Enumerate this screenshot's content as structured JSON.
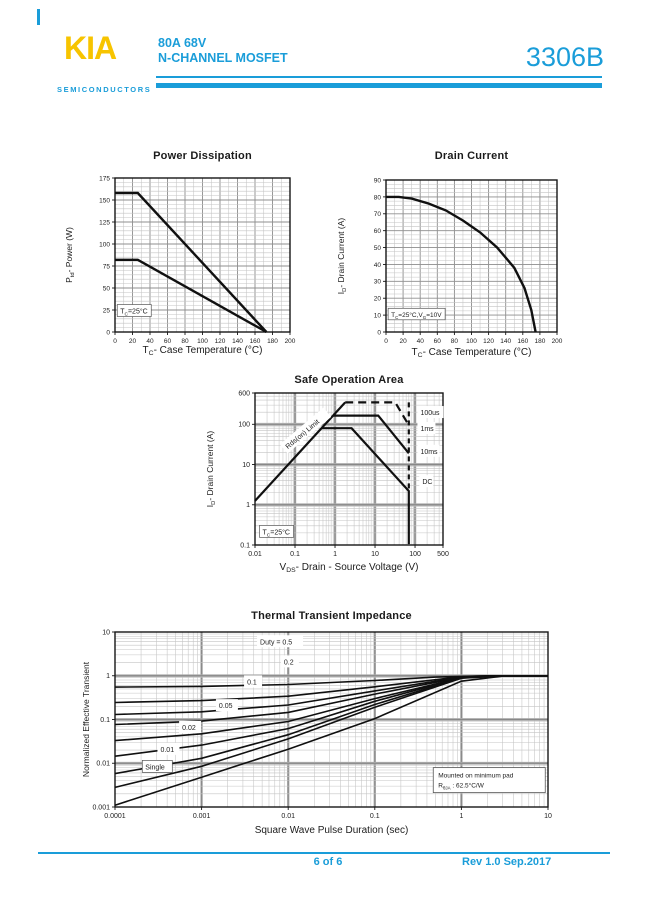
{
  "page": {
    "brand": {
      "logo": "KIA",
      "tagline": "SEMICONDUCTORS",
      "accent_color": "#1A9DD9",
      "logo_color": "#F7C400"
    },
    "header": {
      "spec_line1": "80A 68V",
      "spec_line2": "N-CHANNEL MOSFET",
      "part_number": "3306B"
    },
    "footer": {
      "page_indicator": "6 of 6",
      "revision": "Rev 1.0 Sep.2017"
    }
  },
  "chart_data": [
    {
      "key": "power_dissipation",
      "type": "line",
      "title": "Power Dissipation",
      "xlabel": "T_{C}- Case Temperature (°C)",
      "ylabel": "P_{td}- Power (W)",
      "xscale": "linear",
      "yscale": "linear",
      "xlim": [
        0,
        200
      ],
      "ylim": [
        0,
        175
      ],
      "x_ticks": [
        0,
        20,
        40,
        60,
        80,
        100,
        120,
        140,
        160,
        180,
        200
      ],
      "y_ticks": [
        0,
        25,
        50,
        75,
        100,
        125,
        150,
        175
      ],
      "x_minor": 10,
      "y_minor": 5,
      "grid": true,
      "series": [
        {
          "name": "power-limit-upper",
          "points": [
            [
              0,
              158
            ],
            [
              26,
              158
            ],
            [
              173,
              0
            ]
          ]
        },
        {
          "name": "power-limit-lower",
          "points": [
            [
              0,
              82
            ],
            [
              26,
              82
            ],
            [
              173,
              0
            ]
          ]
        }
      ],
      "labels": [
        {
          "text": "T_{C}=25°C",
          "fx": 0.03,
          "fy": 0.88,
          "size": 7,
          "box": true
        }
      ]
    },
    {
      "key": "drain_current",
      "type": "line",
      "title": "Drain Current",
      "xlabel": "T_{C}- Case Temperature (°C)",
      "ylabel": "I_{D}- Drain Current (A)",
      "xscale": "linear",
      "yscale": "linear",
      "xlim": [
        0,
        200
      ],
      "ylim": [
        0,
        90
      ],
      "x_ticks": [
        0,
        20,
        40,
        60,
        80,
        100,
        120,
        140,
        160,
        180,
        200
      ],
      "y_ticks": [
        0,
        10,
        20,
        30,
        40,
        50,
        60,
        70,
        80,
        90
      ],
      "x_minor": 10,
      "y_minor": 2.5,
      "grid": true,
      "series": [
        {
          "name": "id-derating",
          "points": [
            [
              0,
              80
            ],
            [
              15,
              80
            ],
            [
              30,
              79
            ],
            [
              50,
              76
            ],
            [
              70,
              72
            ],
            [
              90,
              66
            ],
            [
              110,
              59
            ],
            [
              130,
              50
            ],
            [
              150,
              38
            ],
            [
              162,
              26
            ],
            [
              170,
              13
            ],
            [
              175,
              0
            ]
          ]
        }
      ],
      "labels": [
        {
          "text": "T_{C}=25°C,V_{G}=10V",
          "fx": 0.03,
          "fy": 0.9,
          "size": 6.5,
          "box": true
        }
      ]
    },
    {
      "key": "soa",
      "type": "line",
      "title": "Safe Operation Area",
      "xlabel": "V_{DS}- Drain - Source Voltage (V)",
      "ylabel": "I_{D}- Drain Current (A)",
      "xscale": "log",
      "yscale": "log",
      "xlim": [
        0.01,
        500
      ],
      "ylim": [
        0.1,
        600
      ],
      "x_ticks": [
        "0.01",
        "0.1",
        "1",
        "10",
        "100",
        "500"
      ],
      "y_ticks": [
        "600",
        "100",
        "10",
        "1",
        "0.1"
      ],
      "grid": true,
      "series": [
        {
          "name": "rdson-limit",
          "points": [
            [
              0.01,
              1.25
            ],
            [
              1.8,
              350
            ]
          ]
        },
        {
          "name": "100us",
          "dash": "8,5",
          "points": [
            [
              1.8,
              350
            ],
            [
              32,
              350
            ],
            [
              70,
              95
            ]
          ]
        },
        {
          "name": "1ms-10ms",
          "points": [
            [
              0.9,
              165
            ],
            [
              12,
              165
            ],
            [
              70,
              19
            ]
          ]
        },
        {
          "name": "dc",
          "points": [
            [
              0.46,
              80
            ],
            [
              2.6,
              80
            ],
            [
              70,
              2.2
            ],
            [
              70,
              0.105
            ]
          ]
        },
        {
          "name": "voltage-limit",
          "dash": "5,4",
          "points": [
            [
              70,
              350
            ],
            [
              70,
              2.2
            ]
          ]
        }
      ],
      "labels": [
        {
          "text": "Rds(on) Limit",
          "fx": 0.175,
          "fy": 0.37,
          "rot": -40,
          "size": 7,
          "bg": true
        },
        {
          "text": "100us",
          "fx": 0.88,
          "fy": 0.145,
          "size": 7,
          "bg": true
        },
        {
          "text": "1ms",
          "fx": 0.88,
          "fy": 0.25,
          "size": 7,
          "bg": true
        },
        {
          "text": "10ms",
          "fx": 0.88,
          "fy": 0.4,
          "size": 7,
          "bg": true
        },
        {
          "text": "DC",
          "fx": 0.89,
          "fy": 0.6,
          "size": 7,
          "bg": true
        },
        {
          "text": "T_{C}=25°C",
          "fx": 0.04,
          "fy": 0.93,
          "size": 7,
          "box": true
        }
      ]
    },
    {
      "key": "thermal",
      "type": "line",
      "title": "Thermal Transient Impedance",
      "xlabel": "Square Wave Pulse Duration (sec)",
      "ylabel": "Normalized Effective Transient",
      "xscale": "log",
      "yscale": "log",
      "xlim": [
        0.0001,
        10
      ],
      "ylim": [
        0.001,
        10
      ],
      "x_ticks": [
        "0.0001",
        "0.001",
        "0.01",
        "0.1",
        "1",
        "10"
      ],
      "y_ticks": [
        "10",
        "1",
        "0.1",
        "0.01",
        "0.001"
      ],
      "grid": true,
      "series": [
        {
          "name": "duty-0.5",
          "points": [
            [
              0.0001,
              0.55
            ],
            [
              0.001,
              0.57
            ],
            [
              0.01,
              0.63
            ],
            [
              0.1,
              0.78
            ],
            [
              0.5,
              0.93
            ],
            [
              2,
              1.0
            ],
            [
              10,
              1.0
            ]
          ]
        },
        {
          "name": "duty-0.2",
          "points": [
            [
              0.0001,
              0.245
            ],
            [
              0.001,
              0.27
            ],
            [
              0.01,
              0.34
            ],
            [
              0.1,
              0.56
            ],
            [
              1,
              0.95
            ],
            [
              2,
              1.0
            ],
            [
              10,
              1.0
            ]
          ]
        },
        {
          "name": "duty-0.1",
          "points": [
            [
              0.0001,
              0.13
            ],
            [
              0.001,
              0.15
            ],
            [
              0.01,
              0.215
            ],
            [
              0.1,
              0.45
            ],
            [
              1,
              0.93
            ],
            [
              2.5,
              1.0
            ],
            [
              10,
              1.0
            ]
          ]
        },
        {
          "name": "duty-0.05",
          "points": [
            [
              0.0001,
              0.077
            ],
            [
              0.001,
              0.092
            ],
            [
              0.01,
              0.145
            ],
            [
              0.1,
              0.38
            ],
            [
              1,
              0.92
            ],
            [
              3,
              1.0
            ],
            [
              10,
              1.0
            ]
          ]
        },
        {
          "name": "duty-0.02",
          "points": [
            [
              0.0001,
              0.033
            ],
            [
              0.001,
              0.047
            ],
            [
              0.01,
              0.09
            ],
            [
              0.1,
              0.3
            ],
            [
              1,
              0.9
            ],
            [
              3,
              1.0
            ],
            [
              10,
              1.0
            ]
          ]
        },
        {
          "name": "duty-0.01",
          "points": [
            [
              0.0001,
              0.0145
            ],
            [
              0.001,
              0.026
            ],
            [
              0.01,
              0.062
            ],
            [
              0.1,
              0.26
            ],
            [
              1,
              0.9
            ],
            [
              3,
              1.0
            ],
            [
              10,
              1.0
            ]
          ]
        },
        {
          "name": "duty-0.005",
          "points": [
            [
              0.0001,
              0.0058
            ],
            [
              0.001,
              0.013
            ],
            [
              0.01,
              0.045
            ],
            [
              0.1,
              0.22
            ],
            [
              1,
              0.89
            ],
            [
              3,
              1.0
            ],
            [
              10,
              1.0
            ]
          ]
        },
        {
          "name": "duty-0.002",
          "points": [
            [
              0.0001,
              0.0028
            ],
            [
              0.001,
              0.0085
            ],
            [
              0.01,
              0.036
            ],
            [
              0.1,
              0.19
            ],
            [
              1,
              0.88
            ],
            [
              3,
              1.0
            ],
            [
              10,
              1.0
            ]
          ]
        },
        {
          "name": "single-pulse",
          "points": [
            [
              0.0001,
              0.0011
            ],
            [
              0.001,
              0.0048
            ],
            [
              0.01,
              0.021
            ],
            [
              0.1,
              0.105
            ],
            [
              1,
              0.75
            ],
            [
              3,
              0.98
            ],
            [
              10,
              1.0
            ]
          ]
        }
      ],
      "labels": [
        {
          "text": "Duty = 0.5",
          "fx": 0.335,
          "fy": 0.07,
          "size": 7,
          "bg": true
        },
        {
          "text": "0.2",
          "fx": 0.39,
          "fy": 0.185,
          "size": 7,
          "bg": true
        },
        {
          "text": "0.1",
          "fx": 0.305,
          "fy": 0.3,
          "size": 7,
          "bg": true
        },
        {
          "text": "0.05",
          "fx": 0.24,
          "fy": 0.435,
          "size": 7,
          "bg": true
        },
        {
          "text": "0.02",
          "fx": 0.155,
          "fy": 0.56,
          "size": 7,
          "bg": true
        },
        {
          "text": "0.01",
          "fx": 0.105,
          "fy": 0.685,
          "size": 7,
          "bg": true
        },
        {
          "text": "Single",
          "fx": 0.07,
          "fy": 0.785,
          "size": 7,
          "box": true
        }
      ],
      "note": {
        "lines": [
          "Mounted on minimum pad",
          "R_{θJA} : 62.5°C/W"
        ],
        "fx": 0.735,
        "fy": 0.775
      }
    }
  ]
}
